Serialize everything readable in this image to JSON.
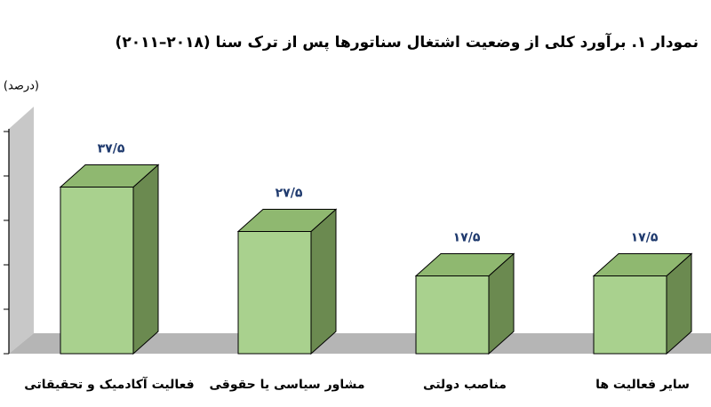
{
  "chart_data": {
    "type": "bar3d",
    "title": "نمودار ۱. برآورد کلی از وضعیت اشتغال سناتورها پس از ترک سنا (۲۰۱۸–۲۰۱۱)",
    "y_label": "(درصد)",
    "categories": [
      "فعالیت آکادمیک و تحقیقاتی",
      "مشاور سیاسی یا حقوقی",
      "مناصب دولتی",
      "سایر فعالیت ها"
    ],
    "values": [
      37.5,
      27.5,
      17.5,
      17.5
    ],
    "value_labels": [
      "۳۷/۵",
      "۲۷/۵",
      "۱۷/۵",
      "۱۷/۵"
    ],
    "color": "#a9d18e",
    "ylim": [
      0,
      55
    ],
    "yticks": [
      0,
      10,
      20,
      30,
      40,
      50
    ]
  }
}
